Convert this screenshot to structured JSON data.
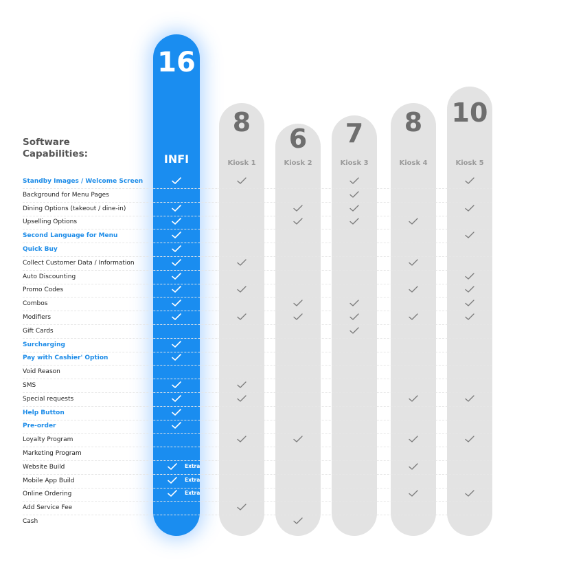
{
  "chart_data": {
    "type": "table",
    "title_lines": [
      "Software",
      "Capabilities:"
    ],
    "columns": [
      {
        "name": "INFI",
        "score": "16",
        "highlight": true
      },
      {
        "name": "Kiosk 1",
        "score": "8"
      },
      {
        "name": "Kiosk 2",
        "score": "6"
      },
      {
        "name": "Kiosk 3",
        "score": "7"
      },
      {
        "name": "Kiosk 4",
        "score": "8"
      },
      {
        "name": "Kiosk 5",
        "score": "10"
      }
    ],
    "extra_label": "Extra",
    "rows": [
      {
        "label": "Standby Images / Welcome Screen",
        "highlight": true,
        "values": [
          1,
          1,
          0,
          1,
          0,
          1
        ]
      },
      {
        "label": "Background for Menu Pages",
        "highlight": false,
        "values": [
          0,
          0,
          0,
          1,
          0,
          0
        ]
      },
      {
        "label": "Dining Options (takeout / dine-in)",
        "highlight": false,
        "values": [
          1,
          0,
          1,
          1,
          0,
          1
        ]
      },
      {
        "label": "Upselling Options",
        "highlight": false,
        "values": [
          1,
          0,
          1,
          1,
          1,
          0
        ]
      },
      {
        "label": "Second Language for Menu",
        "highlight": true,
        "values": [
          1,
          0,
          0,
          0,
          0,
          1
        ]
      },
      {
        "label": "Quick Buy",
        "highlight": true,
        "values": [
          1,
          0,
          0,
          0,
          0,
          0
        ]
      },
      {
        "label": "Collect Customer Data / Information",
        "highlight": false,
        "values": [
          1,
          1,
          0,
          0,
          1,
          0
        ]
      },
      {
        "label": "Auto Discounting",
        "highlight": false,
        "values": [
          1,
          0,
          0,
          0,
          0,
          1
        ]
      },
      {
        "label": "Promo Codes",
        "highlight": false,
        "values": [
          1,
          1,
          0,
          0,
          1,
          1
        ]
      },
      {
        "label": "Combos",
        "highlight": false,
        "values": [
          1,
          0,
          1,
          1,
          0,
          1
        ]
      },
      {
        "label": "Modifiers",
        "highlight": false,
        "values": [
          1,
          1,
          1,
          1,
          1,
          1
        ]
      },
      {
        "label": "Gift Cards",
        "highlight": false,
        "values": [
          0,
          0,
          0,
          1,
          0,
          0
        ]
      },
      {
        "label": "Surcharging",
        "highlight": true,
        "values": [
          1,
          0,
          0,
          0,
          0,
          0
        ]
      },
      {
        "label": "Pay with Cashier' Option",
        "highlight": true,
        "values": [
          1,
          0,
          0,
          0,
          0,
          0
        ]
      },
      {
        "label": "Void Reason",
        "highlight": false,
        "values": [
          0,
          0,
          0,
          0,
          0,
          0
        ]
      },
      {
        "label": "SMS",
        "highlight": false,
        "values": [
          1,
          1,
          0,
          0,
          0,
          0
        ]
      },
      {
        "label": "Special requests",
        "highlight": false,
        "values": [
          1,
          1,
          0,
          0,
          1,
          1
        ]
      },
      {
        "label": "Help Button",
        "highlight": true,
        "values": [
          1,
          0,
          0,
          0,
          0,
          0
        ]
      },
      {
        "label": "Pre-order",
        "highlight": true,
        "values": [
          1,
          0,
          0,
          0,
          0,
          0
        ]
      },
      {
        "label": "Loyalty Program",
        "highlight": false,
        "values": [
          0,
          1,
          1,
          0,
          1,
          1
        ]
      },
      {
        "label": "Marketing Program",
        "highlight": false,
        "values": [
          0,
          0,
          0,
          0,
          0,
          0
        ]
      },
      {
        "label": "Website Build",
        "highlight": false,
        "values": [
          "extra",
          0,
          0,
          0,
          1,
          0
        ]
      },
      {
        "label": "Mobile App Build",
        "highlight": false,
        "values": [
          "extra",
          0,
          0,
          0,
          0,
          0
        ]
      },
      {
        "label": "Online Ordering",
        "highlight": false,
        "values": [
          "extra",
          0,
          0,
          0,
          1,
          1
        ]
      },
      {
        "label": "Add Service Fee",
        "highlight": false,
        "values": [
          0,
          1,
          0,
          0,
          0,
          0
        ]
      },
      {
        "label": "Cash",
        "highlight": false,
        "values": [
          0,
          0,
          1,
          0,
          0,
          0
        ]
      }
    ],
    "colors": {
      "infi": "#1a8df0",
      "pill": "#e3e3e3",
      "check_on_gray": "#7a7a7a",
      "check_on_blue": "#ffffff",
      "highlight_label": "#1d8ce8"
    }
  }
}
